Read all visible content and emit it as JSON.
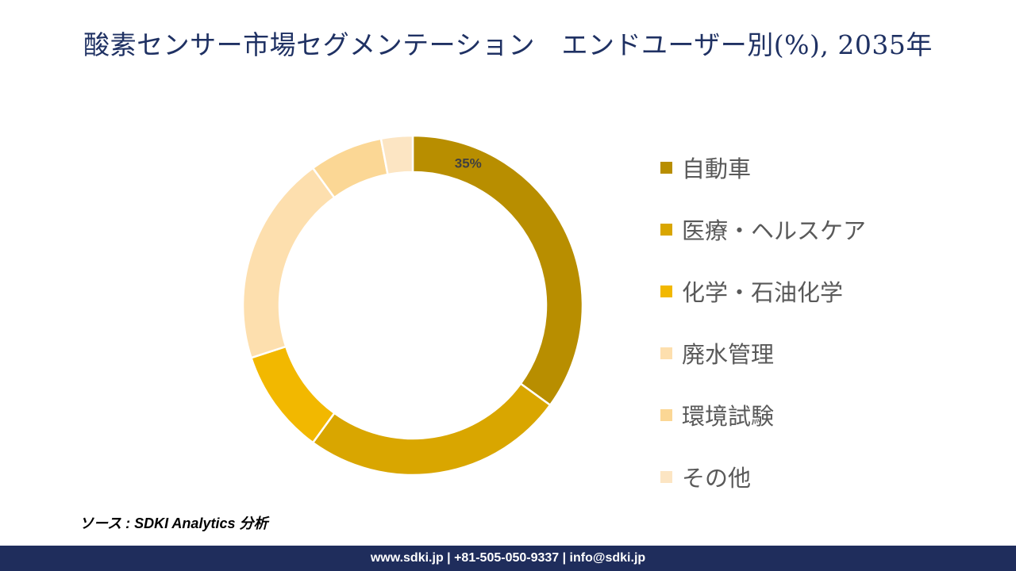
{
  "chart_data": {
    "type": "pie",
    "variant": "donut",
    "title": "酸素センサー市場セグメンテーション　エンドユーザー別(%), 2035年",
    "categories": [
      "自動車",
      "医療・ヘルスケア",
      "化学・石油化学",
      "廃水管理",
      "環境試験",
      "その他"
    ],
    "values": [
      35,
      25,
      10,
      20,
      7,
      3
    ],
    "colors": [
      "#b88e00",
      "#d9a600",
      "#f2b800",
      "#fddfae",
      "#fbd795",
      "#fce5c3"
    ],
    "data_labels": [
      {
        "category": "自動車",
        "text": "35%"
      }
    ],
    "legend_position": "right"
  },
  "source": "ソース : SDKI Analytics 分析",
  "footer": "www.sdki.jp | +81-505-050-9337 | info@sdki.jp"
}
